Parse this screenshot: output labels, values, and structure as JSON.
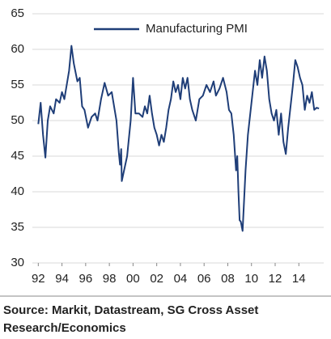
{
  "chart_data": {
    "type": "line",
    "x": [
      1992.0,
      1992.2,
      1992.4,
      1992.6,
      1992.8,
      1993.0,
      1993.3,
      1993.5,
      1993.8,
      1994.0,
      1994.2,
      1994.4,
      1994.6,
      1994.8,
      1995.0,
      1995.3,
      1995.5,
      1995.7,
      1995.9,
      1996.2,
      1996.5,
      1996.8,
      1997.0,
      1997.3,
      1997.6,
      1997.9,
      1998.2,
      1998.4,
      1998.6,
      1998.8,
      1998.9,
      1999.0,
      1999.05,
      1999.5,
      1999.8,
      2000.0,
      2000.2,
      2000.5,
      2000.8,
      2001.0,
      2001.2,
      2001.4,
      2001.6,
      2001.8,
      2002.0,
      2002.2,
      2002.4,
      2002.6,
      2002.8,
      2003.0,
      2003.2,
      2003.4,
      2003.6,
      2003.8,
      2004.0,
      2004.2,
      2004.4,
      2004.6,
      2004.8,
      2005.0,
      2005.3,
      2005.6,
      2005.9,
      2006.2,
      2006.5,
      2006.8,
      2007.0,
      2007.3,
      2007.6,
      2007.9,
      2008.1,
      2008.3,
      2008.5,
      2008.7,
      2008.8,
      2008.9,
      2009.0,
      2009.1,
      2009.25,
      2009.5,
      2009.7,
      2009.9,
      2010.1,
      2010.3,
      2010.5,
      2010.7,
      2010.9,
      2011.1,
      2011.3,
      2011.5,
      2011.7,
      2011.9,
      2012.1,
      2012.3,
      2012.5,
      2012.7,
      2012.9,
      2013.1,
      2013.3,
      2013.5,
      2013.7,
      2013.9,
      2014.1,
      2014.3,
      2014.5,
      2014.7,
      2014.9,
      2015.1,
      2015.3,
      2015.5,
      2015.7
    ],
    "series": [
      {
        "name": "Manufacturing PMI",
        "color": "#1f3e78",
        "values": [
          49.5,
          52.5,
          48,
          44.8,
          50,
          52,
          51,
          53,
          52.5,
          54,
          53,
          55,
          57,
          60.5,
          58,
          55.5,
          56,
          52,
          51.5,
          49,
          50.5,
          51,
          50,
          53,
          55.3,
          53.5,
          54,
          52,
          50,
          45.5,
          43.8,
          46,
          41.5,
          45,
          50,
          56,
          51,
          51,
          50.5,
          52,
          51,
          53.5,
          51,
          49,
          48,
          46.5,
          48,
          47,
          49,
          51.5,
          53,
          55.5,
          54,
          55,
          53,
          56,
          54.5,
          56,
          53,
          51.5,
          50,
          53,
          53.5,
          55,
          54,
          55.5,
          53.5,
          54.5,
          56,
          54,
          51.5,
          51,
          48,
          43,
          45,
          40,
          36,
          35.8,
          34.5,
          43,
          48,
          51,
          54,
          57,
          55,
          58.5,
          56,
          59,
          57,
          53,
          51,
          50,
          51.5,
          48,
          51,
          47,
          45.3,
          49,
          52,
          55,
          58.5,
          57.5,
          56,
          55,
          51.5,
          53.5,
          52.5,
          54,
          51.5,
          51.8,
          51.7
        ]
      }
    ],
    "xlim": [
      1991.5,
      2016.1
    ],
    "xticks": [
      {
        "value": 1992,
        "label": "92"
      },
      {
        "value": 1994,
        "label": "94"
      },
      {
        "value": 1996,
        "label": "96"
      },
      {
        "value": 1998,
        "label": "98"
      },
      {
        "value": 2000,
        "label": "00"
      },
      {
        "value": 2002,
        "label": "02"
      },
      {
        "value": 2004,
        "label": "04"
      },
      {
        "value": 2006,
        "label": "06"
      },
      {
        "value": 2008,
        "label": "08"
      },
      {
        "value": 2010,
        "label": "10"
      },
      {
        "value": 2012,
        "label": "12"
      },
      {
        "value": 2014,
        "label": "14"
      }
    ],
    "ylim": [
      30,
      65
    ],
    "yticks": [
      30,
      35,
      40,
      45,
      50,
      55,
      60,
      65
    ],
    "grid": true,
    "legend": "top",
    "source": "Source: Markit, Datastream, SG Cross Asset",
    "source_line2": "Research/Economics"
  }
}
